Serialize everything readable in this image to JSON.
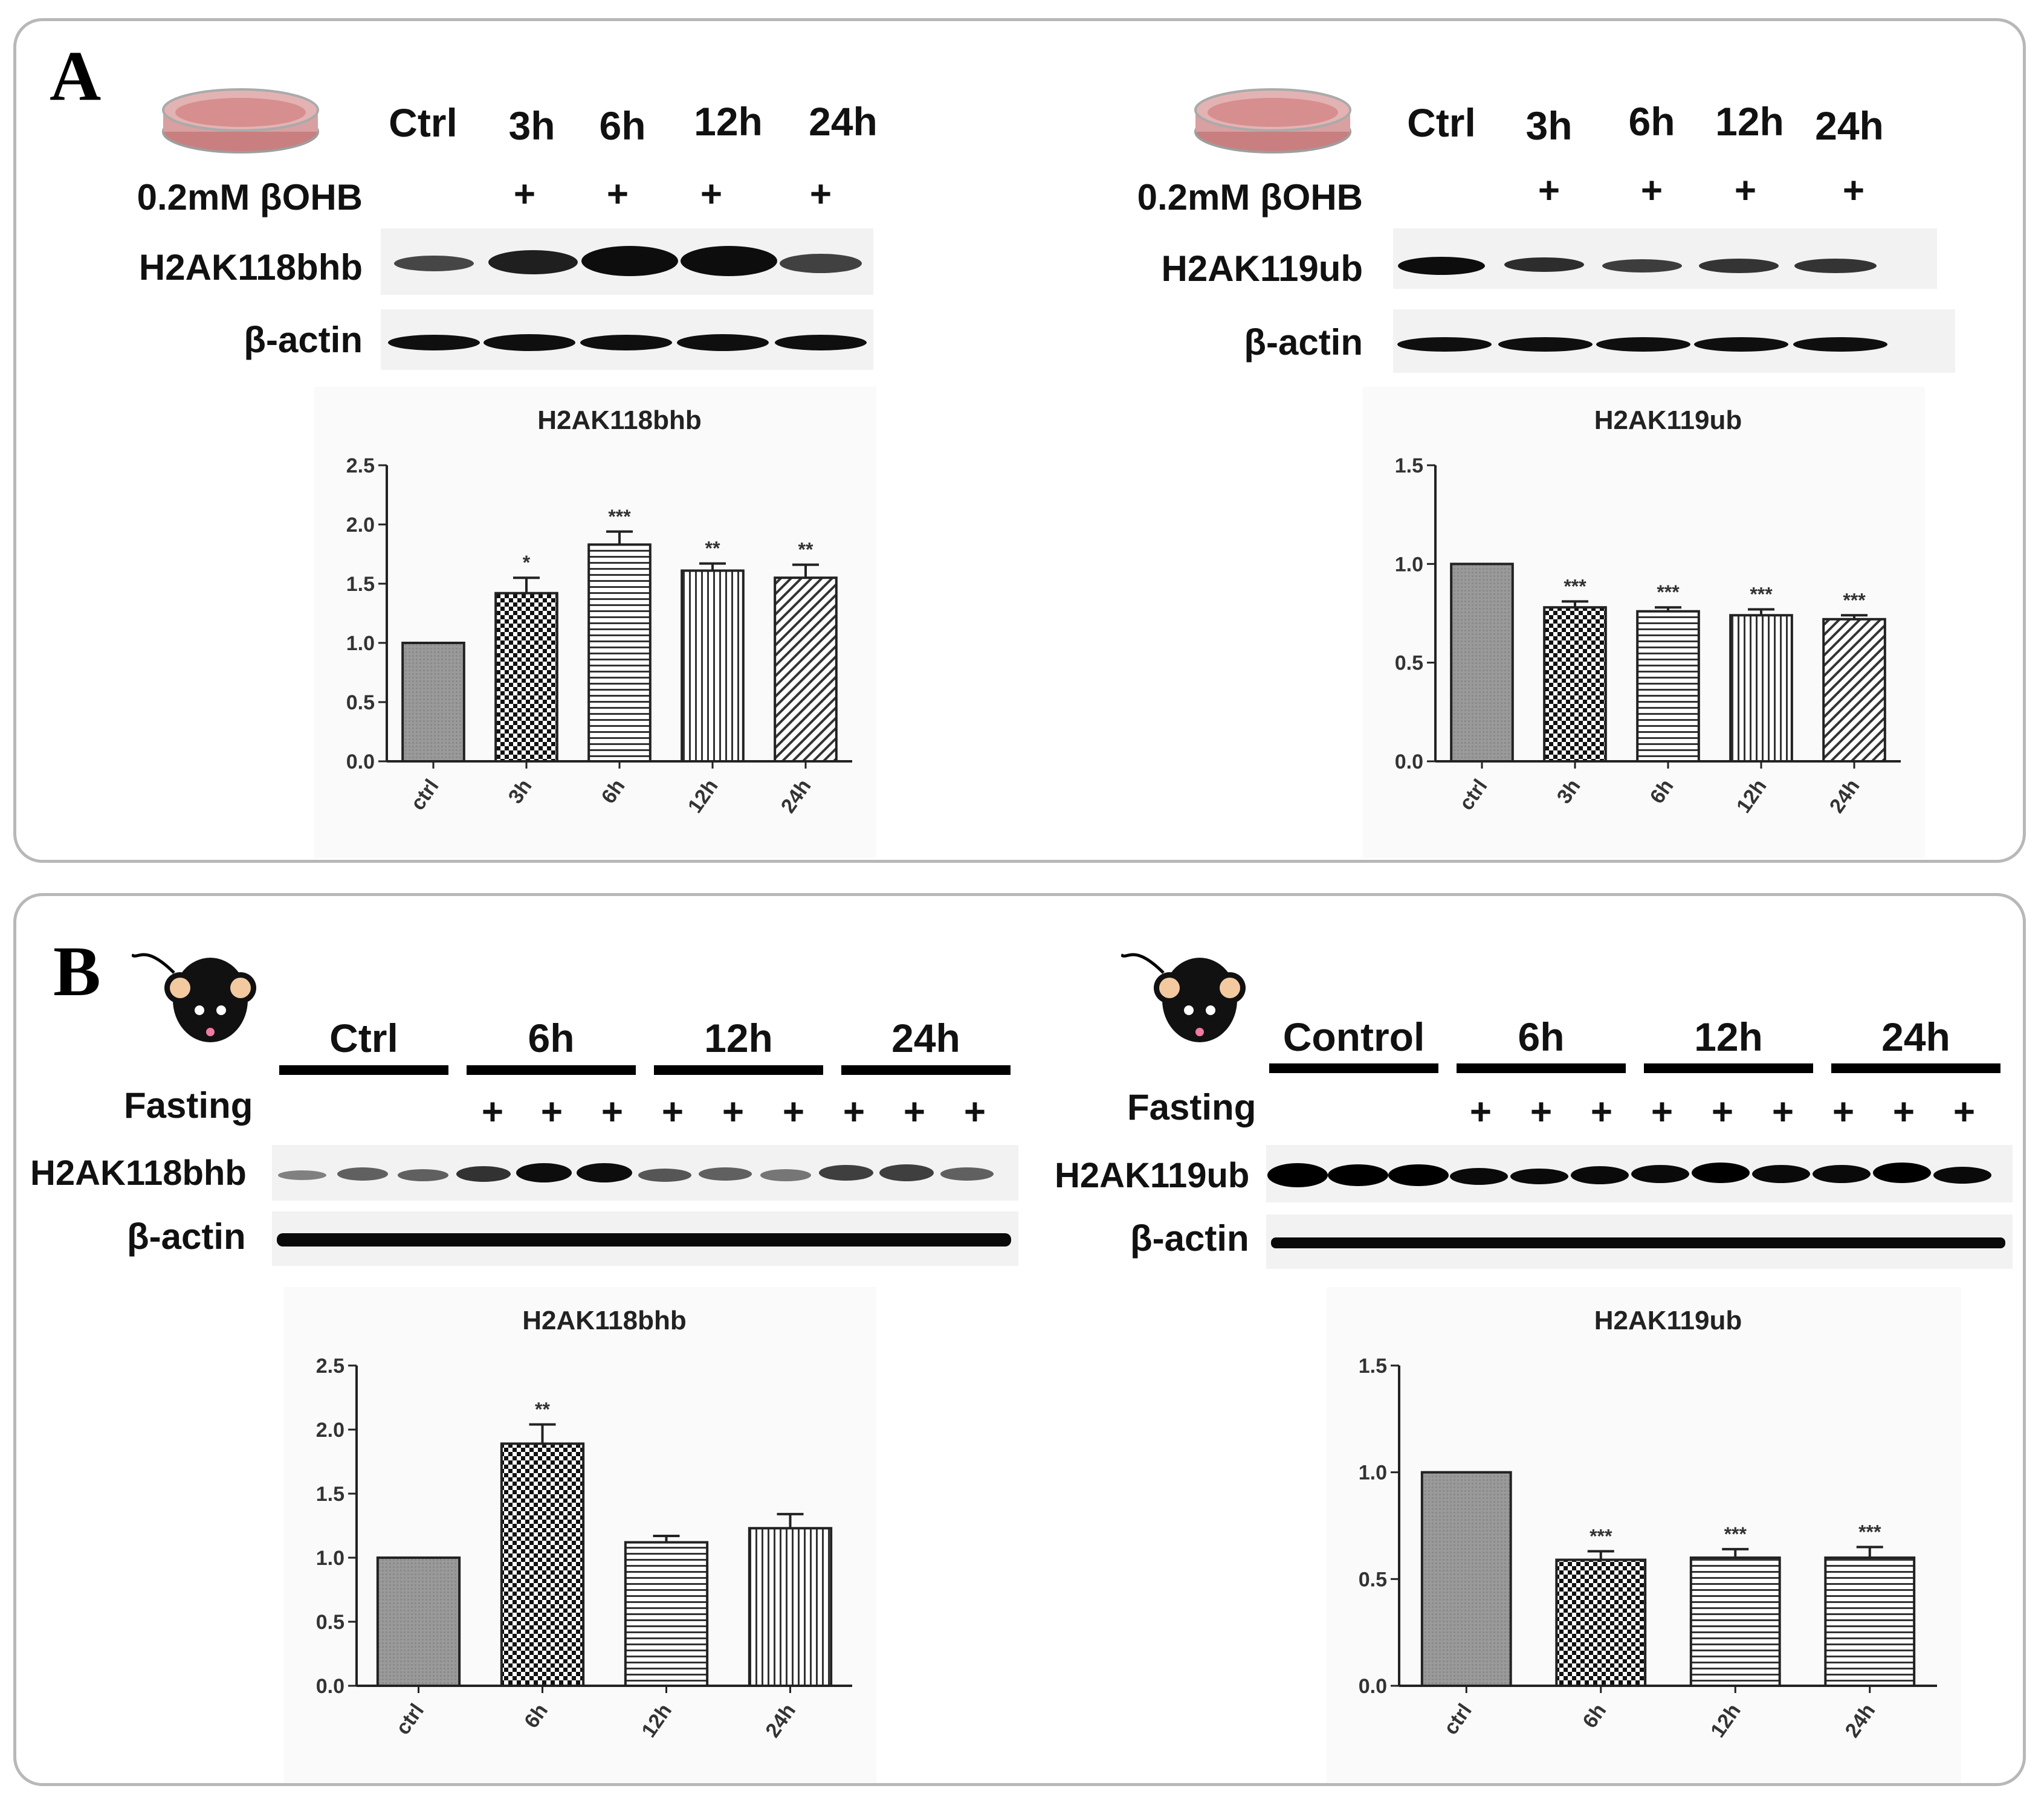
{
  "panel_a": {
    "letter": "A",
    "left": {
      "lanes": [
        "Ctrl",
        "3h",
        "6h",
        "12h",
        "24h"
      ],
      "treatment_label": "0.2mM βOHB",
      "treatment_marks": [
        "",
        "+",
        "+",
        "+",
        "+"
      ],
      "blot_label": "H2AK118bhb",
      "loading_label": "β-actin"
    },
    "right": {
      "lanes": [
        "Ctrl",
        "3h",
        "6h",
        "12h",
        "24h"
      ],
      "treatment_label": "0.2mM βOHB",
      "treatment_marks": [
        "",
        "+",
        "+",
        "+",
        "+"
      ],
      "blot_label": "H2AK119ub",
      "loading_label": "β-actin"
    }
  },
  "panel_b": {
    "letter": "B",
    "left": {
      "groups": [
        "Ctrl",
        "6h",
        "12h",
        "24h"
      ],
      "treatment_label": "Fasting",
      "treatment_marks": [
        "",
        "",
        "",
        "+",
        "+",
        "+",
        "+",
        "+",
        "+",
        "+",
        "+",
        "+"
      ],
      "blot_label": "H2AK118bhb",
      "loading_label": "β-actin"
    },
    "right": {
      "groups": [
        "Control",
        "6h",
        "12h",
        "24h"
      ],
      "treatment_label": "Fasting",
      "treatment_marks": [
        "",
        "",
        "",
        "+",
        "+",
        "+",
        "+",
        "+",
        "+",
        "+",
        "+",
        "+"
      ],
      "blot_label": "H2AK119ub",
      "loading_label": "β-actin"
    }
  },
  "colors": {
    "panel_border": "#b8b8b8",
    "bar_stroke": "#222222",
    "blot_band": "#111111"
  },
  "chart_data": [
    {
      "type": "bar",
      "title": "H2AK118bhb",
      "categories": [
        "ctrl",
        "3h",
        "6h",
        "12h",
        "24h"
      ],
      "values": [
        1.0,
        1.42,
        1.83,
        1.61,
        1.55
      ],
      "errors": [
        0,
        0.13,
        0.11,
        0.06,
        0.11
      ],
      "significance": [
        "",
        "*",
        "***",
        "**",
        "**"
      ],
      "patterns": [
        "solid",
        "checker",
        "hlines",
        "vlines",
        "diag"
      ],
      "ylim": [
        0,
        2.5
      ],
      "yticks": [
        0.0,
        0.5,
        1.0,
        1.5,
        2.0,
        2.5
      ],
      "ytick_labels": [
        "0.0",
        "0.5",
        "1.0",
        "1.5",
        "2.0",
        "2.5"
      ],
      "xlabel": "",
      "ylabel": ""
    },
    {
      "type": "bar",
      "title": "H2AK119ub",
      "categories": [
        "ctrl",
        "3h",
        "6h",
        "12h",
        "24h"
      ],
      "values": [
        1.0,
        0.78,
        0.76,
        0.74,
        0.72
      ],
      "errors": [
        0,
        0.03,
        0.02,
        0.03,
        0.02
      ],
      "significance": [
        "",
        "***",
        "***",
        "***",
        "***"
      ],
      "patterns": [
        "solid",
        "checker",
        "hlines",
        "vlines",
        "diag"
      ],
      "ylim": [
        0,
        1.5
      ],
      "yticks": [
        0.0,
        0.5,
        1.0,
        1.5
      ],
      "ytick_labels": [
        "0.0",
        "0.5",
        "1.0",
        "1.5"
      ],
      "xlabel": "",
      "ylabel": ""
    },
    {
      "type": "bar",
      "title": "H2AK118bhb",
      "categories": [
        "ctrl",
        "6h",
        "12h",
        "24h"
      ],
      "values": [
        1.0,
        1.89,
        1.12,
        1.23
      ],
      "errors": [
        0,
        0.15,
        0.05,
        0.11
      ],
      "significance": [
        "",
        "**",
        "",
        ""
      ],
      "patterns": [
        "solid",
        "checker",
        "hlines",
        "vlines"
      ],
      "ylim": [
        0,
        2.5
      ],
      "yticks": [
        0.0,
        0.5,
        1.0,
        1.5,
        2.0,
        2.5
      ],
      "ytick_labels": [
        "0.0",
        "0.5",
        "1.0",
        "1.5",
        "2.0",
        "2.5"
      ],
      "xlabel": "",
      "ylabel": ""
    },
    {
      "type": "bar",
      "title": "H2AK119ub",
      "categories": [
        "ctrl",
        "6h",
        "12h",
        "24h"
      ],
      "values": [
        1.0,
        0.59,
        0.6,
        0.6
      ],
      "errors": [
        0,
        0.04,
        0.04,
        0.05
      ],
      "significance": [
        "",
        "***",
        "***",
        "***"
      ],
      "patterns": [
        "solid",
        "checker",
        "hlines",
        "hlines"
      ],
      "ylim": [
        0,
        1.5
      ],
      "yticks": [
        0.0,
        0.5,
        1.0,
        1.5
      ],
      "ytick_labels": [
        "0.0",
        "0.5",
        "1.0",
        "1.5"
      ],
      "xlabel": "",
      "ylabel": ""
    }
  ]
}
